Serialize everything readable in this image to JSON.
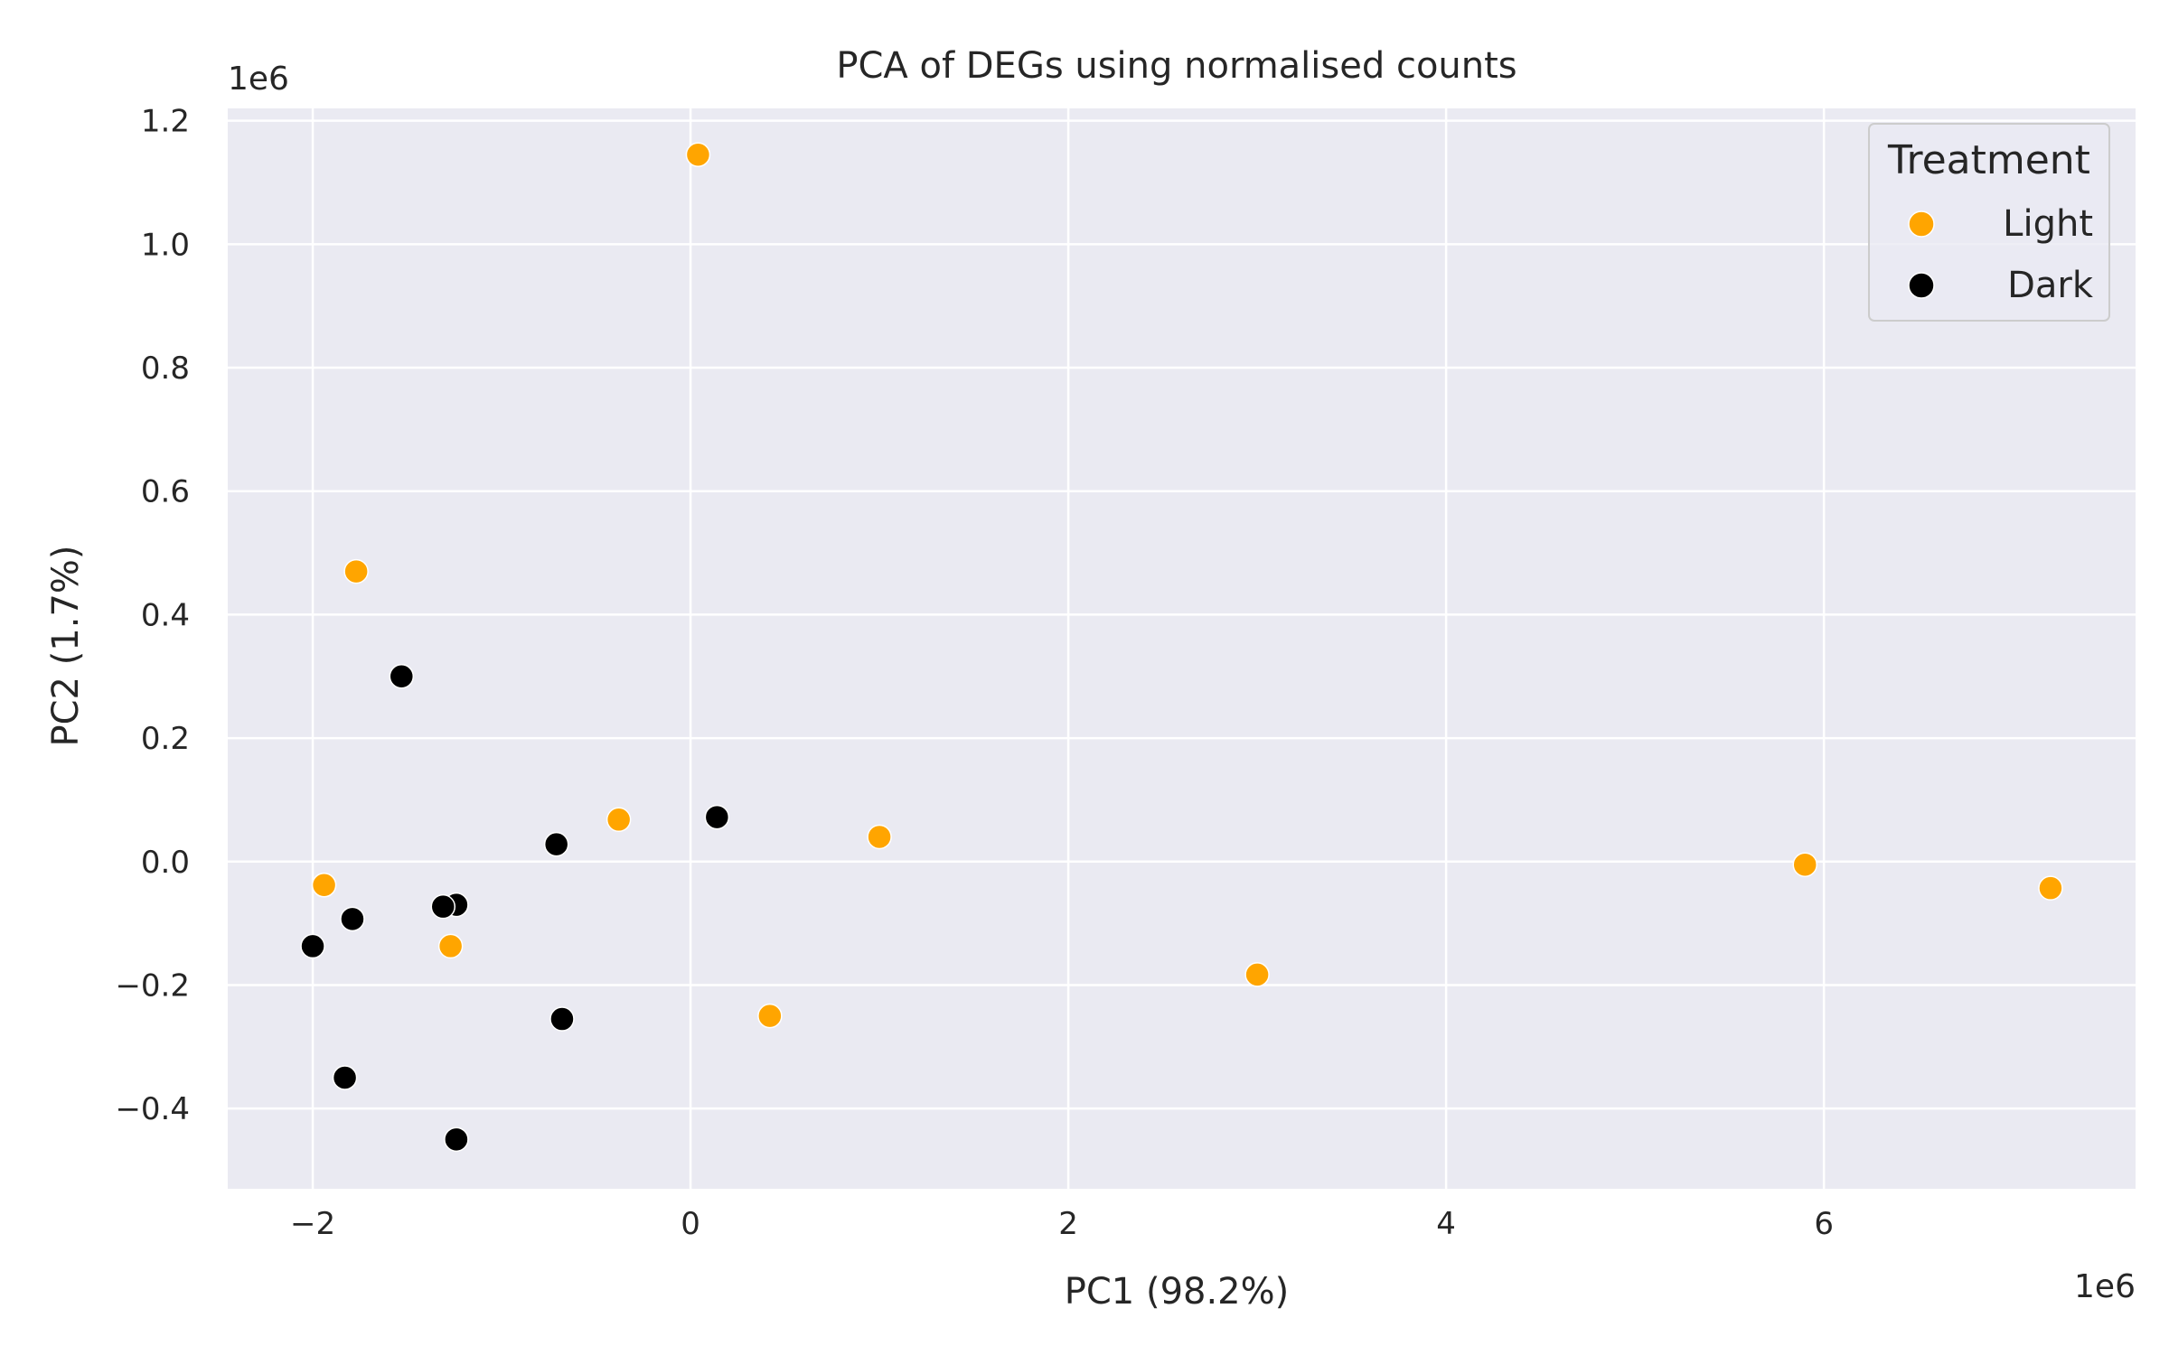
{
  "chart_data": {
    "type": "scatter",
    "title": "PCA of DEGs using normalised counts",
    "xlabel": "PC1 (98.2%)",
    "ylabel": "PC2 (1.7%)",
    "x_offset_label": "1e6",
    "y_offset_label": "1e6",
    "xlim": [
      -2.45,
      7.65
    ],
    "ylim": [
      -0.53,
      1.22
    ],
    "x_ticks": [
      -2,
      0,
      2,
      4,
      6
    ],
    "x_tick_labels": [
      "−2",
      "0",
      "2",
      "4",
      "6"
    ],
    "y_ticks": [
      -0.4,
      -0.2,
      0.0,
      0.2,
      0.4,
      0.6,
      0.8,
      1.0,
      1.2
    ],
    "y_tick_labels": [
      "−0.4",
      "−0.2",
      "0.0",
      "0.2",
      "0.4",
      "0.6",
      "0.8",
      "1.0",
      "1.2"
    ],
    "grid": true,
    "legend": {
      "title": "Treatment",
      "position": "top-right"
    },
    "series": [
      {
        "name": "Light",
        "color": "#FFA500",
        "points": [
          {
            "x": 0.04,
            "y": 1.145
          },
          {
            "x": -1.77,
            "y": 0.47
          },
          {
            "x": -0.38,
            "y": 0.068
          },
          {
            "x": 1.0,
            "y": 0.04
          },
          {
            "x": -1.94,
            "y": -0.038
          },
          {
            "x": -1.27,
            "y": -0.137
          },
          {
            "x": 0.42,
            "y": -0.25
          },
          {
            "x": 3.0,
            "y": -0.183
          },
          {
            "x": 5.9,
            "y": -0.005
          },
          {
            "x": 7.2,
            "y": -0.043
          }
        ]
      },
      {
        "name": "Dark",
        "color": "#000000",
        "points": [
          {
            "x": -1.53,
            "y": 0.3
          },
          {
            "x": 0.14,
            "y": 0.072
          },
          {
            "x": -0.71,
            "y": 0.028
          },
          {
            "x": -1.24,
            "y": -0.07
          },
          {
            "x": -1.31,
            "y": -0.073
          },
          {
            "x": -1.79,
            "y": -0.093
          },
          {
            "x": -2.0,
            "y": -0.137
          },
          {
            "x": -0.68,
            "y": -0.255
          },
          {
            "x": -1.83,
            "y": -0.35
          },
          {
            "x": -1.24,
            "y": -0.45
          }
        ]
      }
    ]
  }
}
